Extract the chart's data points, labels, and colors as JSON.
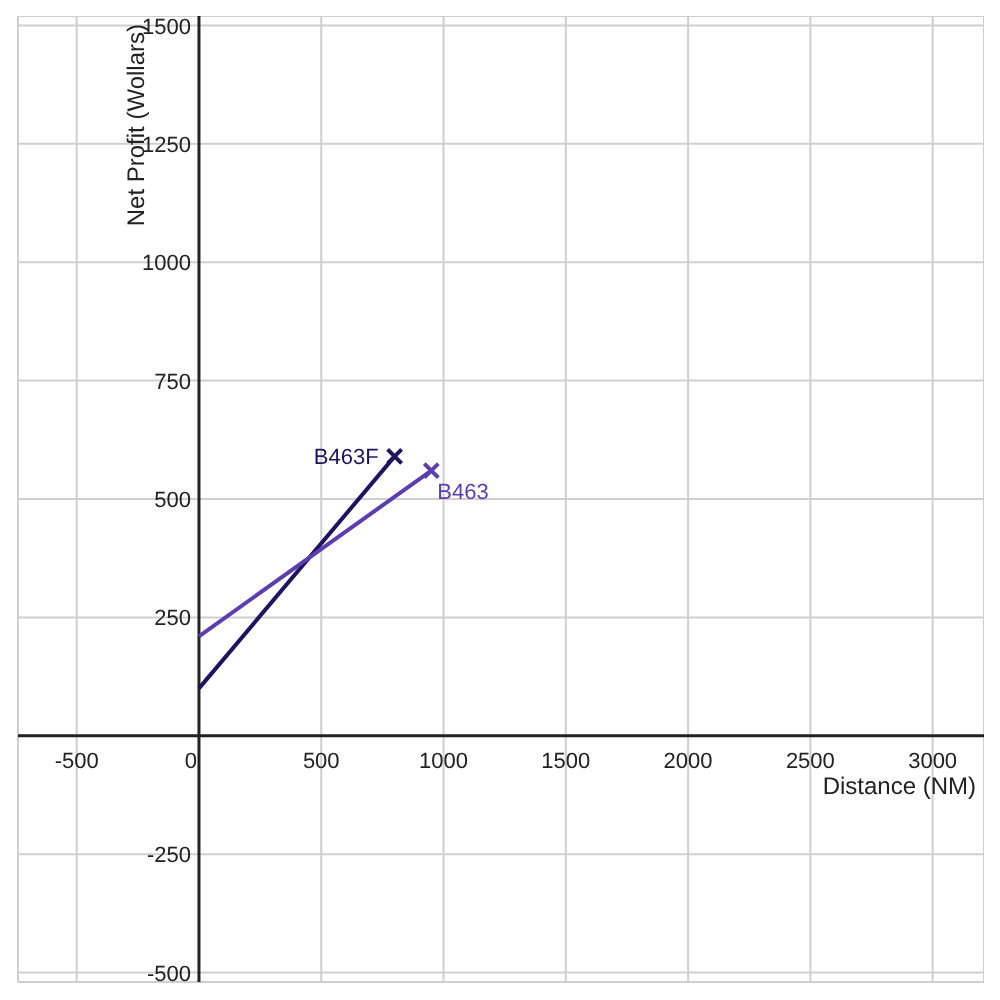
{
  "chart_data": {
    "type": "line",
    "xlabel": "Distance (NM)",
    "ylabel": "Net Profit (Wollars)",
    "xlim": [
      -740,
      3210
    ],
    "ylim": [
      -520,
      1520
    ],
    "xticks": [
      -500,
      {
        "value": 0,
        "label": "0"
      },
      500,
      1000,
      1500,
      2000,
      2500,
      3000
    ],
    "yticks": [
      -500,
      -250,
      {
        "value": 0,
        "label": null
      },
      250,
      500,
      750,
      1000,
      1250,
      1500
    ],
    "grid": true,
    "legend": false,
    "marker": "cross",
    "line_style": "solid",
    "series": [
      {
        "name": "B463F",
        "color": "#1f1360",
        "x": [
          0,
          800
        ],
        "values": [
          100,
          590
        ]
      },
      {
        "name": "B463",
        "color": "#5b3fb0",
        "x": [
          0,
          950
        ],
        "values": [
          210,
          560
        ]
      }
    ]
  }
}
